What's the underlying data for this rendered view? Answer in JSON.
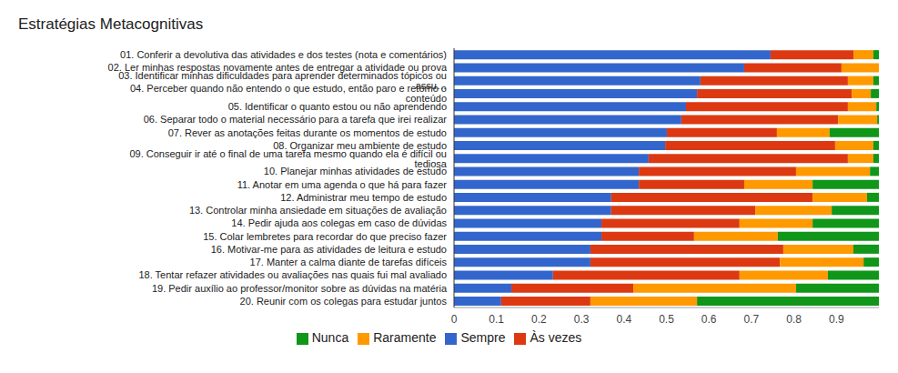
{
  "chart_data": {
    "type": "bar",
    "title": "Estratégias Metacognitivas",
    "orientation": "horizontal",
    "stacked": true,
    "grid": false,
    "legend": "bottom",
    "categories": [
      "01. Conferir a devolutiva das atividades e dos testes (nota e comentários)",
      "02. Ler minhas respostas novamente antes de entregar a atividade ou prova",
      "03. Identificar minhas dificuldades para aprender determinados tópicos ou assu…",
      "04. Perceber quando não entendo o que estudo, então paro e retomo o conteúdo",
      "05. Identificar o quanto estou ou não aprendendo",
      "06. Separar todo o material necessário para a tarefa que irei realizar",
      "07. Rever as anotações feitas durante os momentos de estudo",
      "08. Organizar meu ambiente de estudo",
      "09. Conseguir ir até o final de uma tarefa mesmo quando ela é difícil ou tediosa",
      "10. Planejar minhas atividades de estudo",
      "11. Anotar em uma agenda o que há para fazer",
      "12. Administrar meu tempo de estudo",
      "13. Controlar minha ansiedade em situações de avaliação",
      "14. Pedir ajuda aos colegas em caso de dúvidas",
      "15. Colar lembretes para recordar do que preciso fazer",
      "16. Motivar-me para as atividades de leitura e estudo",
      "17. Manter a calma diante de tarefas difíceis",
      "18. Tentar refazer atividades ou avaliações nas quais fui mal avaliado",
      "19. Pedir auxílio ao professor/monitor sobre as dúvidas na matéria",
      "20. Reunir com os colegas para estudar juntos"
    ],
    "series": [
      {
        "name": "Sempre",
        "color": "#3366cc",
        "values": [
          0.745,
          0.683,
          0.58,
          0.572,
          0.546,
          0.535,
          0.501,
          0.497,
          0.458,
          0.435,
          0.435,
          0.37,
          0.37,
          0.347,
          0.347,
          0.321,
          0.321,
          0.233,
          0.135,
          0.111
        ]
      },
      {
        "name": "Às vezes",
        "color": "#dc3912",
        "values": [
          0.195,
          0.229,
          0.347,
          0.364,
          0.381,
          0.369,
          0.259,
          0.4,
          0.469,
          0.37,
          0.248,
          0.474,
          0.339,
          0.325,
          0.218,
          0.454,
          0.446,
          0.439,
          0.287,
          0.21
        ]
      },
      {
        "name": "Raramente",
        "color": "#ff9900",
        "values": [
          0.047,
          0.088,
          0.06,
          0.045,
          0.067,
          0.092,
          0.124,
          0.09,
          0.06,
          0.174,
          0.161,
          0.128,
          0.18,
          0.172,
          0.197,
          0.165,
          0.197,
          0.208,
          0.383,
          0.251
        ]
      },
      {
        "name": "Nunca",
        "color": "#109618",
        "values": [
          0.013,
          0,
          0.013,
          0.019,
          0.006,
          0.004,
          0.116,
          0.013,
          0.013,
          0.021,
          0.156,
          0.028,
          0.111,
          0.156,
          0.238,
          0.06,
          0.036,
          0.12,
          0.195,
          0.428
        ]
      }
    ],
    "xlim": [
      0,
      1
    ],
    "xticks": [
      0,
      0.1,
      0.2,
      0.3,
      0.4,
      0.5,
      0.6,
      0.7,
      0.8,
      0.9
    ]
  }
}
